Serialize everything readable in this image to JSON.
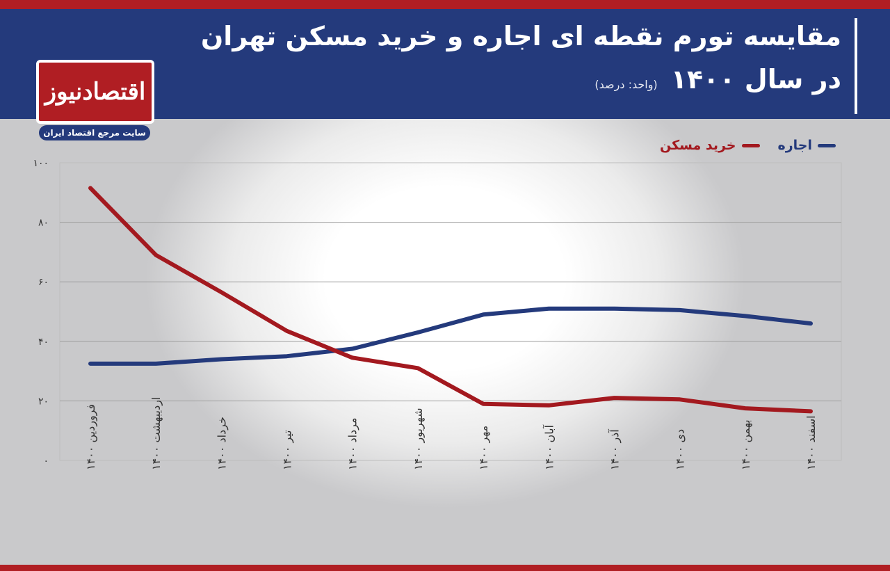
{
  "header": {
    "title_line1": "مقایسه تورم نقطه ای اجاره و خرید مسکن تهران",
    "title_line2": "در سال ۱۴۰۰",
    "unit": "(واحد: درصد)"
  },
  "logo": {
    "name": "اقتصادنیوز",
    "tagline": "سایت مرجع اقتصاد ایران"
  },
  "colors": {
    "header_bg": "#243a7c",
    "accent_red": "#b01e23",
    "rent": "#243a7c",
    "purchase": "#a3191f"
  },
  "chart_data": {
    "type": "line",
    "title": "مقایسه تورم نقطه ای اجاره و خرید مسکن تهران در سال ۱۴۰۰",
    "ylabel": "(واحد: درصد)",
    "xlabel": "",
    "categories": [
      "فروردین ۱۴۰۰",
      "اردیبهشت ۱۴۰۰",
      "خرداد ۱۴۰۰",
      "تیر ۱۴۰۰",
      "مرداد ۱۴۰۰",
      "شهریور ۱۴۰۰",
      "مهر ۱۴۰۰",
      "آبان ۱۴۰۰",
      "آذر ۱۴۰۰",
      "دی ۱۴۰۰",
      "بهمن ۱۴۰۰",
      "اسفند ۱۴۰۰"
    ],
    "series": [
      {
        "name": "اجاره",
        "color": "#243a7c",
        "values": [
          32.5,
          32.5,
          34,
          35,
          37.5,
          43,
          49,
          51,
          51,
          50.5,
          48.5,
          46
        ]
      },
      {
        "name": "خرید مسکن",
        "color": "#a3191f",
        "values": [
          91.5,
          69,
          56.5,
          43.5,
          34.5,
          31,
          19,
          18.5,
          21,
          20.5,
          17.5,
          16.5
        ]
      }
    ],
    "ylim": [
      0,
      100
    ],
    "yticks": [
      "۰",
      "۲۰",
      "۴۰",
      "۶۰",
      "۸۰",
      "۱۰۰"
    ],
    "grid": true,
    "legend": "top-right"
  }
}
